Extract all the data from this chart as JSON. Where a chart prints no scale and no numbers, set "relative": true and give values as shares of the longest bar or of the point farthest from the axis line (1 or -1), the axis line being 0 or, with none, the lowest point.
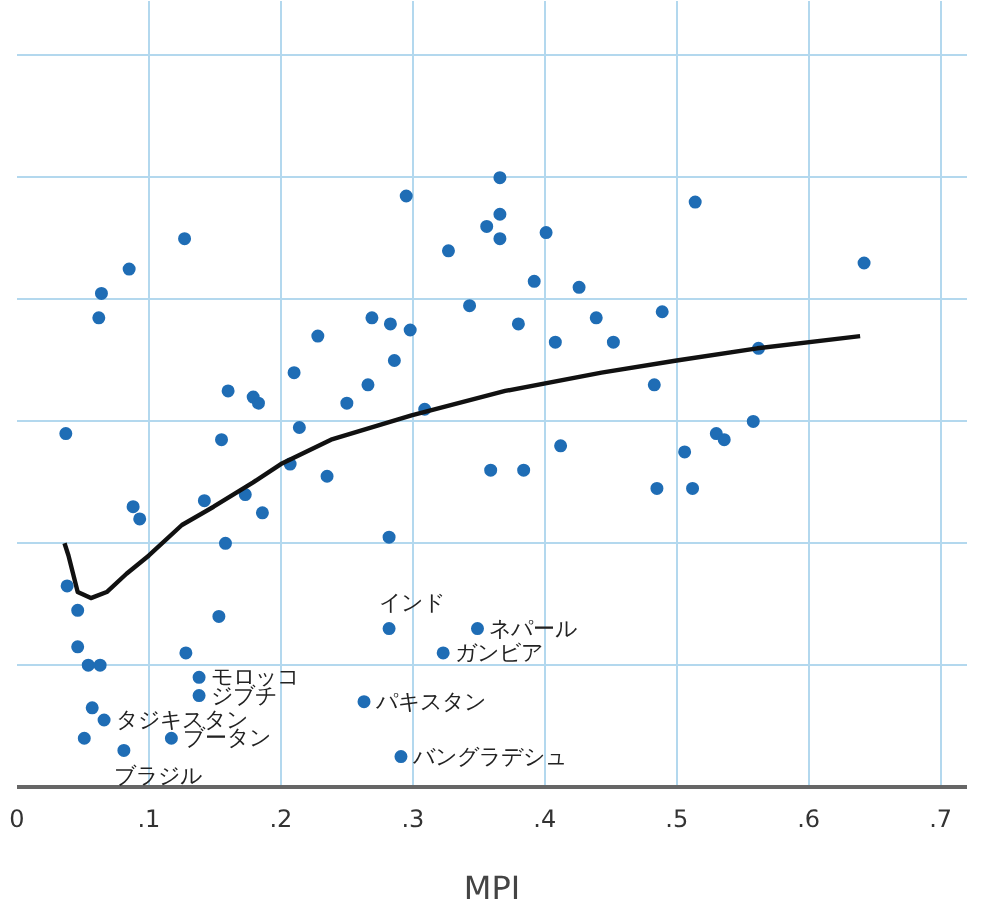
{
  "chart_data": {
    "type": "scatter",
    "xlabel": "MPI",
    "relative": true,
    "grid": true,
    "xlim": [
      0,
      0.72
    ],
    "xticks": [
      0,
      {
        "value": 0.1,
        "label": ".1"
      },
      {
        "value": 0.2,
        "label": ".2"
      },
      {
        "value": 0.3,
        "label": ".3"
      },
      {
        "value": 0.4,
        "label": ".4"
      },
      {
        "value": 0.5,
        "label": ".5"
      },
      {
        "value": 0.6,
        "label": ".6"
      },
      {
        "value": 0.7,
        "label": ".7"
      }
    ],
    "series": [
      {
        "color": "#1f6db5",
        "marker": "circle",
        "x": [
          0.127,
          0.085,
          0.064,
          0.062,
          0.037,
          0.295,
          0.366,
          0.366,
          0.356,
          0.366,
          0.327,
          0.343,
          0.228,
          0.269,
          0.283,
          0.298,
          0.286,
          0.21,
          0.16,
          0.179,
          0.183,
          0.25,
          0.266,
          0.309,
          0.155,
          0.214,
          0.207,
          0.235,
          0.359,
          0.088,
          0.093,
          0.142,
          0.173,
          0.186,
          0.158,
          0.282,
          0.514,
          0.401,
          0.392,
          0.426,
          0.38,
          0.439,
          0.489,
          0.408,
          0.452,
          0.642,
          0.562,
          0.483,
          0.412,
          0.558,
          0.53,
          0.536,
          0.506,
          0.384,
          0.485,
          0.512,
          0.038,
          0.046,
          0.153,
          0.282,
          0.046,
          0.054,
          0.063,
          0.128,
          0.138,
          0.138,
          0.057,
          0.066,
          0.051,
          0.117,
          0.081,
          0.263,
          0.291,
          0.349,
          0.323
        ],
        "values": [
          0.9,
          0.85,
          0.81,
          0.77,
          0.58,
          0.97,
          1.0,
          0.94,
          0.92,
          0.9,
          0.88,
          0.79,
          0.74,
          0.77,
          0.76,
          0.75,
          0.7,
          0.68,
          0.65,
          0.64,
          0.63,
          0.63,
          0.66,
          0.62,
          0.57,
          0.59,
          0.53,
          0.51,
          0.52,
          0.46,
          0.44,
          0.47,
          0.48,
          0.45,
          0.4,
          0.41,
          0.96,
          0.91,
          0.83,
          0.82,
          0.76,
          0.77,
          0.78,
          0.73,
          0.73,
          0.86,
          0.72,
          0.66,
          0.56,
          0.6,
          0.58,
          0.57,
          0.55,
          0.52,
          0.49,
          0.49,
          0.33,
          0.29,
          0.28,
          0.26,
          0.23,
          0.2,
          0.2,
          0.22,
          0.18,
          0.15,
          0.13,
          0.11,
          0.08,
          0.08,
          0.06,
          0.14,
          0.05,
          0.26,
          0.22
        ]
      },
      {
        "type": "line",
        "color": "#111111",
        "line_style": "solid",
        "marker": "none",
        "x": [
          0.036,
          0.039,
          0.046,
          0.056,
          0.068,
          0.083,
          0.1,
          0.125,
          0.149,
          0.179,
          0.2,
          0.238,
          0.299,
          0.37,
          0.443,
          0.5,
          0.561,
          0.639
        ],
        "values": [
          0.4,
          0.38,
          0.32,
          0.31,
          0.32,
          0.35,
          0.38,
          0.43,
          0.46,
          0.5,
          0.53,
          0.57,
          0.61,
          0.65,
          0.68,
          0.7,
          0.72,
          0.74
        ]
      }
    ],
    "annotations": [
      {
        "text": "インド",
        "x": 0.282,
        "y": 0.26
      },
      {
        "text": "ネパール",
        "x": 0.349,
        "y": 0.26
      },
      {
        "text": "ガンビア",
        "x": 0.323,
        "y": 0.22
      },
      {
        "text": "モロッコ",
        "x": 0.138,
        "y": 0.18
      },
      {
        "text": "ジブチ",
        "x": 0.138,
        "y": 0.15
      },
      {
        "text": "パキスタン",
        "x": 0.263,
        "y": 0.14
      },
      {
        "text": "タジキスタン",
        "x": 0.066,
        "y": 0.11
      },
      {
        "text": "ブータン",
        "x": 0.117,
        "y": 0.08
      },
      {
        "text": "バングラデシュ",
        "x": 0.291,
        "y": 0.05
      },
      {
        "text": "ブラジル",
        "x": 0.081,
        "y": 0.06
      }
    ]
  }
}
